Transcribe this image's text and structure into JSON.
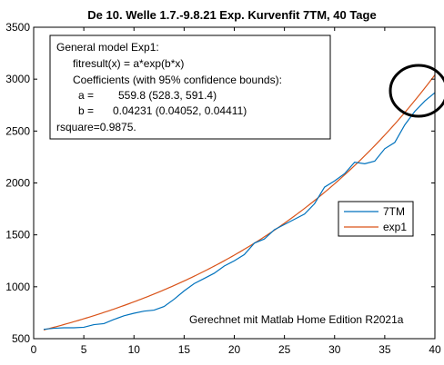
{
  "chart_data": {
    "type": "line",
    "title": "De 10. Welle 1.7.-9.8.21 Exp. Kurvenfit 7TM, 40 Tage",
    "xlim": [
      0,
      40
    ],
    "ylim": [
      500,
      3500
    ],
    "xticks": [
      0,
      5,
      10,
      15,
      20,
      25,
      30,
      35,
      40
    ],
    "yticks": [
      500,
      1000,
      1500,
      2000,
      2500,
      3000,
      3500
    ],
    "grid": false,
    "legend": "right",
    "series": [
      {
        "name": "7TM",
        "color": "#0072BD",
        "x": [
          1,
          2,
          3,
          4,
          5,
          6,
          7,
          8,
          9,
          10,
          11,
          12,
          13,
          14,
          15,
          16,
          17,
          18,
          19,
          20,
          21,
          22,
          23,
          24,
          25,
          26,
          27,
          28,
          29,
          30,
          31,
          32,
          33,
          34,
          35,
          36,
          37,
          38,
          39,
          40
        ],
        "y": [
          590,
          600,
          605,
          605,
          610,
          635,
          645,
          685,
          720,
          745,
          765,
          775,
          810,
          880,
          960,
          1030,
          1080,
          1130,
          1200,
          1250,
          1310,
          1420,
          1460,
          1550,
          1600,
          1650,
          1700,
          1800,
          1960,
          2020,
          2090,
          2200,
          2185,
          2210,
          2330,
          2390,
          2560,
          2690,
          2790,
          2870
        ]
      },
      {
        "name": "exp1",
        "color": "#D95319",
        "fit": {
          "a": 559.8,
          "b": 0.04231
        },
        "x_range": [
          1,
          40
        ]
      }
    ],
    "annotations": {
      "fit_box": [
        "General model Exp1:",
        "fitresult(x) = a*exp(b*x)",
        "Coefficients (with 95% confidence bounds):",
        "a =",
        "559.8  (528.3, 591.4)",
        "b =",
        "0.04231  (0.04052, 0.04411)",
        "rsquare=0.9875."
      ],
      "credit": "Gerechnet mit Matlab Home Edition R2021a"
    }
  }
}
